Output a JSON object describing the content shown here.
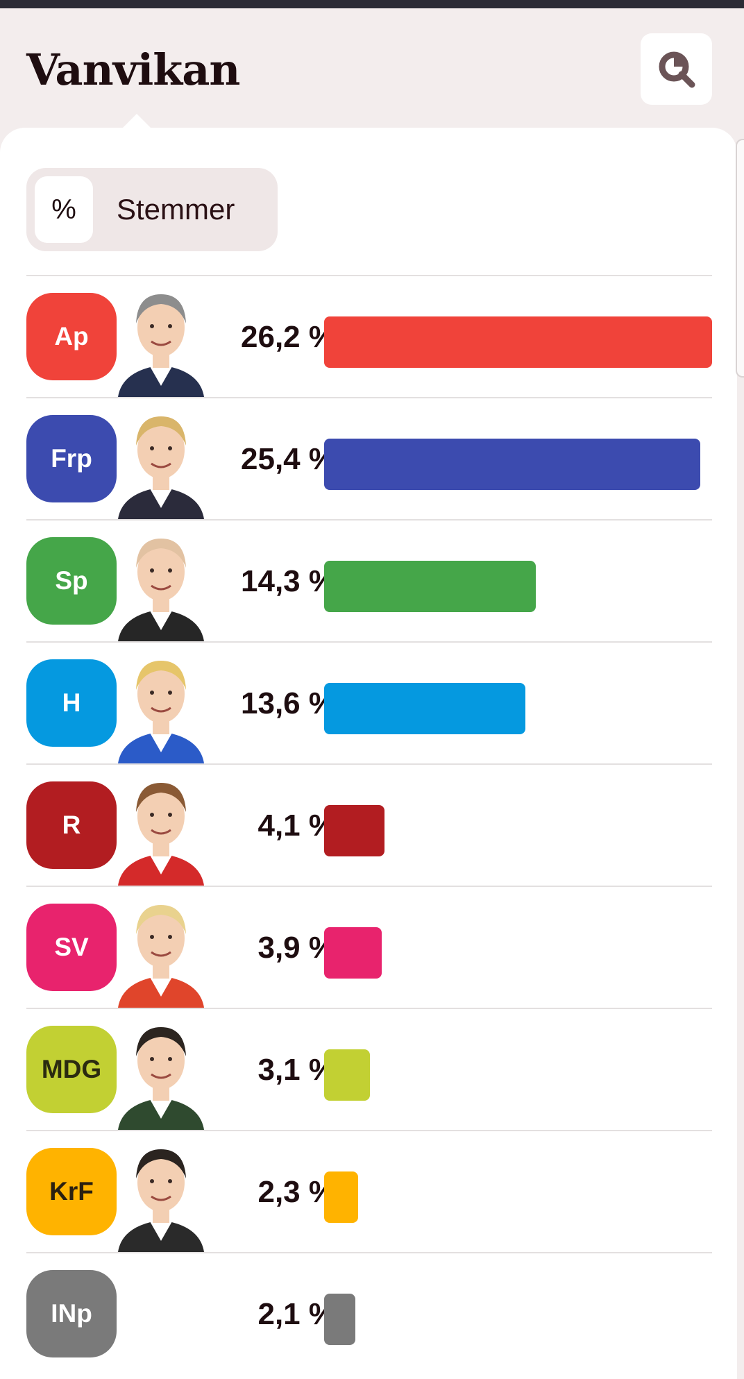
{
  "header": {
    "title": "Vanvikan"
  },
  "toggle": {
    "percent_label": "%",
    "votes_label": "Stemmer"
  },
  "colors": {
    "background": "#f3eded",
    "card": "#ffffff",
    "title": "#1e0d10"
  },
  "chart_data": {
    "type": "bar",
    "orientation": "horizontal",
    "unit": "%",
    "categories": [
      "Ap",
      "Frp",
      "Sp",
      "H",
      "R",
      "SV",
      "MDG",
      "KrF",
      "INp"
    ],
    "values": [
      26.2,
      25.4,
      14.3,
      13.6,
      4.1,
      3.9,
      3.1,
      2.3,
      2.1
    ],
    "value_labels": [
      "26,2 %",
      "25,4 %",
      "14,3 %",
      "13,6 %",
      "4,1 %",
      "3,9 %",
      "3,1 %",
      "2,3 %",
      "2,1 %"
    ],
    "colors": [
      "#f0433a",
      "#3c4baf",
      "#45a649",
      "#0599e0",
      "#b21d21",
      "#e8236d",
      "#c2d033",
      "#ffb300",
      "#7a7a7a"
    ],
    "badge_text_colors": [
      "#ffffff",
      "#ffffff",
      "#ffffff",
      "#ffffff",
      "#ffffff",
      "#ffffff",
      "#2b2b10",
      "#2b2010",
      "#ffffff"
    ],
    "portraits": [
      true,
      true,
      true,
      true,
      true,
      true,
      true,
      true,
      false
    ],
    "xlim": [
      0,
      26.2
    ]
  }
}
